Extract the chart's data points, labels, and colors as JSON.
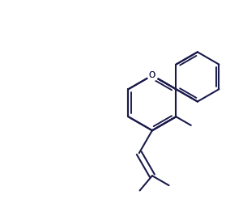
{
  "background_color": "#ffffff",
  "line_color": "#1a1a4a",
  "line_width": 1.5,
  "figsize": [
    2.84,
    2.46
  ],
  "dpi": 100
}
